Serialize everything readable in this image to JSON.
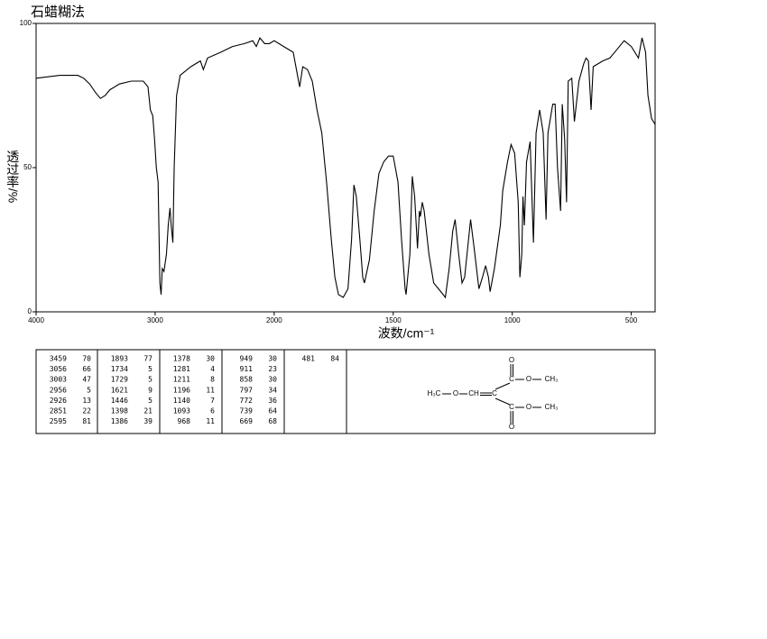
{
  "chart_data": {
    "type": "line",
    "title": "石蜡糊法",
    "xlabel": "波数/cm⁻¹",
    "ylabel": "透过率/%",
    "xlim": [
      4000,
      400
    ],
    "xticks": [
      4000,
      3000,
      2000,
      1500,
      1000,
      500
    ],
    "ylim": [
      0,
      100
    ],
    "yticks": [
      0,
      50,
      100
    ],
    "color": "#000000",
    "x": [
      4000,
      3800,
      3650,
      3600,
      3550,
      3500,
      3460,
      3420,
      3380,
      3300,
      3200,
      3100,
      3060,
      3040,
      3020,
      3005,
      2990,
      2975,
      2960,
      2950,
      2940,
      2926,
      2905,
      2890,
      2875,
      2865,
      2851,
      2840,
      2820,
      2790,
      2700,
      2620,
      2595,
      2560,
      2450,
      2350,
      2250,
      2180,
      2150,
      2120,
      2080,
      2040,
      2000,
      1960,
      1920,
      1893,
      1880,
      1860,
      1840,
      1820,
      1800,
      1780,
      1760,
      1745,
      1730,
      1710,
      1690,
      1675,
      1665,
      1655,
      1640,
      1628,
      1621,
      1600,
      1580,
      1560,
      1540,
      1520,
      1500,
      1480,
      1465,
      1450,
      1446,
      1430,
      1420,
      1410,
      1398,
      1390,
      1386,
      1378,
      1370,
      1350,
      1330,
      1300,
      1281,
      1265,
      1250,
      1240,
      1225,
      1211,
      1200,
      1190,
      1175,
      1160,
      1140,
      1125,
      1112,
      1100,
      1093,
      1075,
      1050,
      1040,
      1020,
      1005,
      990,
      975,
      968,
      960,
      955,
      949,
      940,
      925,
      911,
      900,
      885,
      870,
      858,
      850,
      830,
      820,
      810,
      797,
      790,
      780,
      772,
      765,
      750,
      739,
      720,
      700,
      690,
      680,
      669,
      660,
      620,
      590,
      560,
      530,
      500,
      470,
      455,
      440,
      430,
      415,
      400
    ],
    "values": [
      81,
      82,
      82,
      81,
      79,
      76,
      74,
      75,
      77,
      79,
      80,
      80,
      78,
      70,
      68,
      60,
      50,
      45,
      10,
      6,
      15,
      14,
      20,
      30,
      36,
      30,
      24,
      50,
      75,
      82,
      85,
      87,
      84,
      88,
      90,
      92,
      93,
      94,
      92,
      95,
      93,
      93,
      94,
      92,
      90,
      78,
      85,
      84,
      80,
      70,
      62,
      45,
      25,
      12,
      6,
      5,
      8,
      25,
      44,
      40,
      25,
      12,
      10,
      18,
      35,
      48,
      52,
      54,
      54,
      45,
      25,
      8,
      6,
      20,
      47,
      40,
      22,
      35,
      33,
      38,
      35,
      20,
      10,
      7,
      5,
      15,
      28,
      32,
      20,
      10,
      12,
      20,
      32,
      22,
      8,
      12,
      16,
      12,
      7,
      15,
      30,
      42,
      52,
      58,
      55,
      38,
      12,
      20,
      40,
      30,
      52,
      59,
      24,
      62,
      70,
      62,
      32,
      62,
      72,
      72,
      50,
      35,
      72,
      60,
      38,
      80,
      81,
      66,
      80,
      86,
      88,
      87,
      70,
      85,
      87,
      88,
      91,
      94,
      92,
      88,
      95,
      90,
      75,
      67,
      65
    ]
  },
  "peaks": [
    [
      3459,
      70
    ],
    [
      3056,
      66
    ],
    [
      3003,
      47
    ],
    [
      2956,
      5
    ],
    [
      2926,
      13
    ],
    [
      2851,
      22
    ],
    [
      2595,
      81
    ],
    [
      1893,
      77
    ],
    [
      1734,
      5
    ],
    [
      1729,
      5
    ],
    [
      1621,
      9
    ],
    [
      1446,
      5
    ],
    [
      1398,
      21
    ],
    [
      1386,
      39
    ],
    [
      1378,
      30
    ],
    [
      1281,
      4
    ],
    [
      1211,
      8
    ],
    [
      1196,
      11
    ],
    [
      1140,
      7
    ],
    [
      1093,
      6
    ],
    [
      968,
      11
    ],
    [
      949,
      30
    ],
    [
      911,
      23
    ],
    [
      858,
      30
    ],
    [
      797,
      34
    ],
    [
      772,
      36
    ],
    [
      739,
      64
    ],
    [
      669,
      68
    ],
    [
      481,
      84
    ]
  ],
  "structure": {
    "labels": [
      "H₃C",
      "O",
      "CH",
      "C",
      "C",
      "O",
      "O",
      "CH₃",
      "C",
      "O",
      "O",
      "CH₃"
    ]
  }
}
